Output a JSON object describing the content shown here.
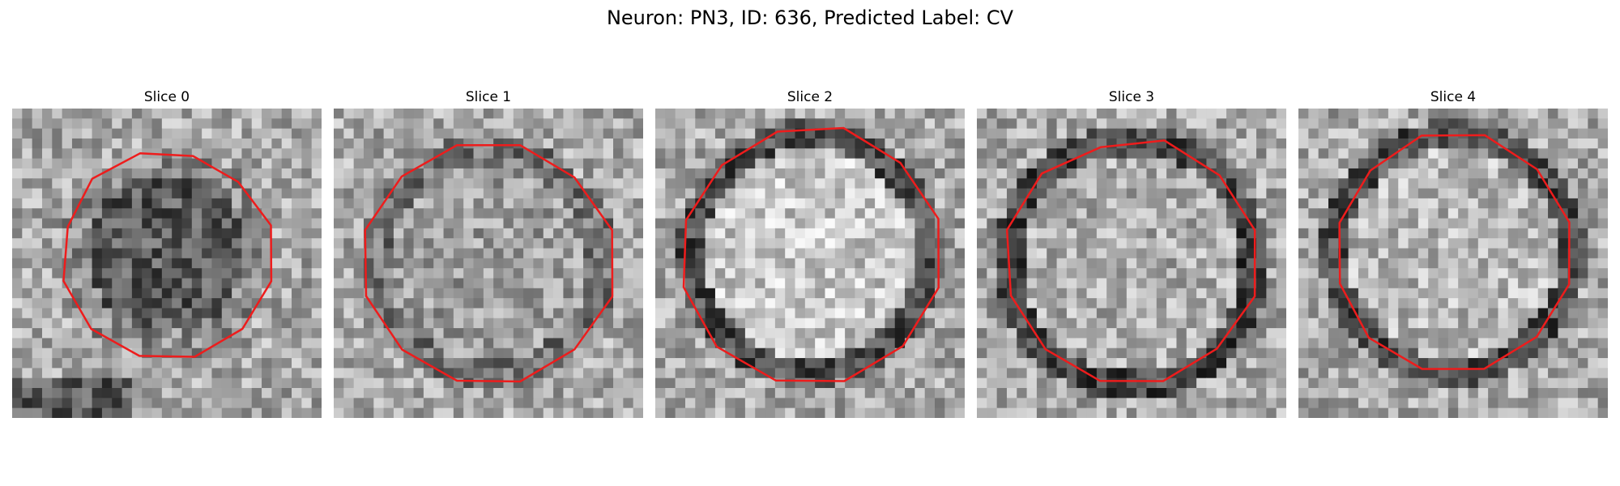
{
  "figure": {
    "title": "Neuron: PN3, ID: 636, Predicted Label: CV"
  },
  "panels": [
    {
      "title": "Slice 0",
      "variant": 0
    },
    {
      "title": "Slice 1",
      "variant": 1
    },
    {
      "title": "Slice 2",
      "variant": 2
    },
    {
      "title": "Slice 3",
      "variant": 3
    },
    {
      "title": "Slice 4",
      "variant": 4
    }
  ],
  "colors": {
    "contour": "#ee1c1c",
    "background": "#ffffff"
  },
  "colormap": "gray"
}
